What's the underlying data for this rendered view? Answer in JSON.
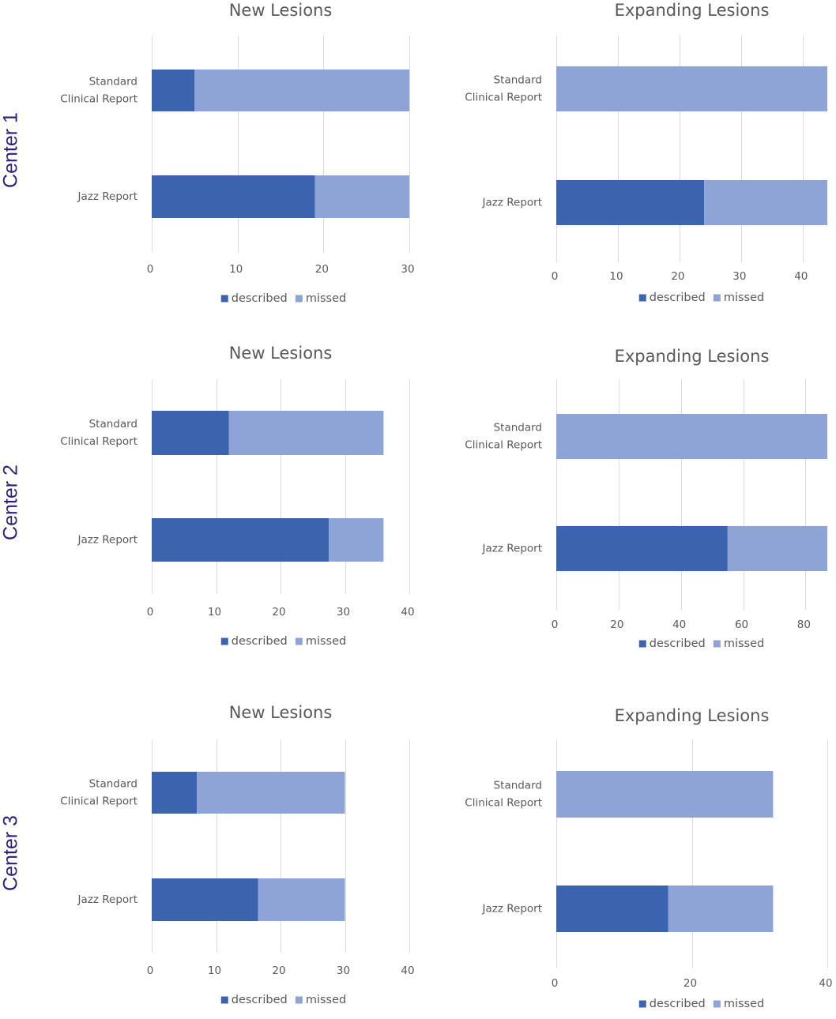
{
  "row_labels": [
    "Center 1",
    "Center 2",
    "Center 3"
  ],
  "colors": {
    "described": "#3c63ad",
    "missed": "#8fa4d6",
    "row_label": "#2e1f7a"
  },
  "chart_data": [
    {
      "type": "bar",
      "stacked": true,
      "orientation": "horizontal",
      "title": "New Lesions",
      "categories": [
        "Standard\nClinical Report",
        "Jazz Report"
      ],
      "series": [
        {
          "name": "described",
          "values": [
            5,
            19
          ]
        },
        {
          "name": "missed",
          "values": [
            25,
            11
          ]
        }
      ],
      "xlim": [
        0,
        30
      ],
      "xticks": [
        0,
        10,
        20,
        30
      ],
      "grid": true,
      "legend": "bottom"
    },
    {
      "type": "bar",
      "stacked": true,
      "orientation": "horizontal",
      "title": "Expanding Lesions",
      "categories": [
        "Standard\nClinical Report",
        "Jazz Report"
      ],
      "series": [
        {
          "name": "described",
          "values": [
            0,
            24
          ]
        },
        {
          "name": "missed",
          "values": [
            44,
            20
          ]
        }
      ],
      "xlim": [
        0,
        44
      ],
      "xticks": [
        0,
        10,
        20,
        30,
        40
      ],
      "grid": true,
      "legend": "bottom"
    },
    {
      "type": "bar",
      "stacked": true,
      "orientation": "horizontal",
      "title": "New Lesions",
      "categories": [
        "Standard\nClinical Report",
        "Jazz Report"
      ],
      "series": [
        {
          "name": "described",
          "values": [
            12,
            27.5
          ]
        },
        {
          "name": "missed",
          "values": [
            24,
            8.5
          ]
        }
      ],
      "xlim": [
        0,
        40
      ],
      "xticks": [
        0,
        10,
        20,
        30,
        40
      ],
      "grid": true,
      "legend": "bottom"
    },
    {
      "type": "bar",
      "stacked": true,
      "orientation": "horizontal",
      "title": "Expanding Lesions",
      "categories": [
        "Standard\nClinical Report",
        "Jazz Report"
      ],
      "series": [
        {
          "name": "described",
          "values": [
            0,
            55
          ]
        },
        {
          "name": "missed",
          "values": [
            87,
            32
          ]
        }
      ],
      "xlim": [
        0,
        87
      ],
      "xticks": [
        0,
        20,
        40,
        60,
        80
      ],
      "grid": true,
      "legend": "bottom"
    },
    {
      "type": "bar",
      "stacked": true,
      "orientation": "horizontal",
      "title": "New Lesions",
      "categories": [
        "Standard\nClinical Report",
        "Jazz Report"
      ],
      "series": [
        {
          "name": "described",
          "values": [
            7,
            16.5
          ]
        },
        {
          "name": "missed",
          "values": [
            23,
            13.5
          ]
        }
      ],
      "xlim": [
        0,
        40
      ],
      "xticks": [
        0,
        10,
        20,
        30,
        40
      ],
      "grid": true,
      "legend": "bottom"
    },
    {
      "type": "bar",
      "stacked": true,
      "orientation": "horizontal",
      "title": "Expanding Lesions",
      "categories": [
        "Standard\nClinical Report",
        "Jazz Report"
      ],
      "series": [
        {
          "name": "described",
          "values": [
            0,
            16.5
          ]
        },
        {
          "name": "missed",
          "values": [
            32,
            15.5
          ]
        }
      ],
      "xlim": [
        0,
        40
      ],
      "xticks": [
        0,
        20,
        40
      ],
      "grid": true,
      "legend": "bottom"
    }
  ]
}
